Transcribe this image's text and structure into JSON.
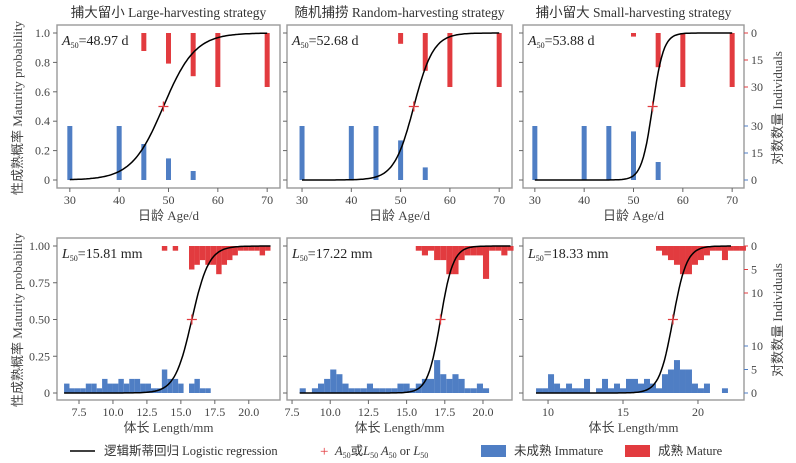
{
  "colors": {
    "immature": "#4f7ec4",
    "mature": "#e23b3f",
    "curve": "#000000",
    "marker": "#e23b3f",
    "frame": "#9a9a9a"
  },
  "y_label_left": "性成熟概率 Maturity probability",
  "y_label_right": "对数数量 Individuals",
  "legend": {
    "curve": "逻辑斯蒂回归 Logistic regression",
    "marker_symbol": "+",
    "marker_parts": [
      "A",
      "50",
      "或",
      "L",
      "50",
      "  A",
      "50",
      " or ",
      "L",
      "50"
    ],
    "immature": "未成熟 Immature",
    "mature": "成熟 Mature",
    "position": "bottom"
  },
  "chart_data": [
    {
      "type": "bar+line",
      "title": "捕大留小 Large-harvesting strategy",
      "xlabel": "日龄 Age/d",
      "xlim": [
        27.4,
        72.6
      ],
      "ylim": [
        0,
        1
      ],
      "xticks": [
        "30",
        "40",
        "50",
        "60",
        "70"
      ],
      "yticks": [
        "0",
        "0.2",
        "0.4",
        "0.6",
        "0.8",
        "1.0"
      ],
      "annotation": {
        "var": "A",
        "sub": "50",
        "text": "=48.97 d"
      },
      "x50": 48.97,
      "slope": 0.31,
      "curve_range": [
        30,
        70
      ],
      "bin_width": 0,
      "immature": {
        "x": [
          30,
          40,
          45,
          50,
          55
        ],
        "counts": [
          30,
          30,
          20,
          12,
          5
        ]
      },
      "mature": {
        "x": [
          45,
          50,
          55,
          60,
          70
        ],
        "counts": [
          10,
          17,
          24,
          30,
          30
        ]
      }
    },
    {
      "type": "bar+line",
      "title": "随机捕捞 Random-harvesting strategy",
      "xlabel": "日龄 Age/d",
      "xlim": [
        26.95,
        72.6
      ],
      "ylim": [
        0,
        1
      ],
      "xticks": [
        "30",
        "40",
        "50",
        "60",
        "70"
      ],
      "annotation": {
        "var": "A",
        "sub": "50",
        "text": "=52.68 d"
      },
      "x50": 52.68,
      "slope": 0.5,
      "curve_range": [
        30,
        70
      ],
      "bin_width": 0,
      "immature": {
        "x": [
          30,
          40,
          45,
          50,
          55
        ],
        "counts": [
          30,
          30,
          30,
          22,
          7
        ]
      },
      "mature": {
        "x": [
          50,
          55,
          60,
          70
        ],
        "counts": [
          6,
          21,
          30,
          30
        ]
      }
    },
    {
      "type": "bar+line",
      "title": "捕小留大 Small-harvesting strategy",
      "xlabel": "日龄 Age/d",
      "xlim": [
        27.6,
        72.4
      ],
      "ylim": [
        0,
        1
      ],
      "xticks": [
        "30",
        "40",
        "50",
        "60",
        "70"
      ],
      "right_ticks_mature": [
        "0",
        "15",
        "30"
      ],
      "right_ticks_immature": [
        "30",
        "15",
        "0"
      ],
      "annotation": {
        "var": "A",
        "sub": "50",
        "text": "=53.88 d"
      },
      "x50": 53.88,
      "slope": 0.9,
      "curve_range": [
        30,
        70
      ],
      "bin_width": 0,
      "immature": {
        "x": [
          30,
          40,
          45,
          50,
          55
        ],
        "counts": [
          30,
          30,
          30,
          27,
          10
        ]
      },
      "mature": {
        "x": [
          50,
          55,
          60,
          70
        ],
        "counts": [
          2,
          19,
          30,
          30
        ]
      }
    },
    {
      "type": "histogram+line",
      "xlabel": "体长 Length/mm",
      "xlim": [
        5.88,
        22.3
      ],
      "ylim": [
        0,
        1
      ],
      "xticks": [
        "7.5",
        "10.0",
        "12.5",
        "15.0",
        "17.5",
        "20.0"
      ],
      "yticks": [
        "0",
        "0.25",
        "0.50",
        "0.75",
        "1.00"
      ],
      "annotation": {
        "var": "L",
        "sub": "50",
        "text": "=15.81 mm"
      },
      "x50": 15.81,
      "slope": 1.6,
      "curve_range": [
        6.4,
        21.6
      ],
      "bin_width": 0.4,
      "immature": {
        "start": 6.4,
        "counts": [
          2,
          1,
          1,
          1,
          2,
          2,
          1,
          3,
          2,
          2,
          3,
          2,
          3,
          3,
          2,
          2,
          1,
          1,
          5,
          3,
          3,
          2,
          0,
          2,
          3,
          1,
          1
        ]
      },
      "mature": {
        "start": 13.6,
        "counts": [
          1,
          0,
          1,
          0,
          0,
          5,
          4,
          3,
          4,
          4,
          6,
          4,
          3,
          2,
          1,
          1,
          1,
          1,
          2,
          1
        ]
      }
    },
    {
      "type": "histogram+line",
      "xlabel": "体长 Length/mm",
      "xlim": [
        7.17,
        21.9
      ],
      "ylim": [
        0,
        1
      ],
      "xticks": [
        "7.5",
        "10.0",
        "12.5",
        "15.0",
        "17.5",
        "20.0"
      ],
      "annotation": {
        "var": "L",
        "sub": "50",
        "text": "=17.22 mm"
      },
      "x50": 17.22,
      "slope": 2.4,
      "curve_range": [
        8.0,
        21.8
      ],
      "bin_width": 0.4,
      "immature": {
        "start": 8.0,
        "counts": [
          1,
          0,
          1,
          2,
          3,
          5,
          4,
          2,
          1,
          1,
          1,
          2,
          1,
          1,
          1,
          1,
          2,
          2,
          1,
          2,
          3,
          3,
          7,
          4,
          3,
          4,
          3,
          1,
          1,
          2,
          1
        ]
      },
      "mature": {
        "start": 15.6,
        "counts": [
          1,
          2,
          1,
          3,
          3,
          6,
          6,
          3,
          2,
          2,
          2,
          7,
          1,
          1,
          2,
          1
        ]
      }
    },
    {
      "type": "histogram+line",
      "xlabel": "体长 Length/mm",
      "xlim": [
        8.33,
        23.07
      ],
      "ylim": [
        0,
        1
      ],
      "xticks": [
        "10",
        "15",
        "20"
      ],
      "right_ticks_mature": [
        "0",
        "5",
        "10"
      ],
      "right_ticks_immature": [
        "10",
        "5",
        "0"
      ],
      "annotation": {
        "var": "L",
        "sub": "50",
        "text": "=18.33 mm"
      },
      "x50": 18.33,
      "slope": 2.2,
      "curve_range": [
        9.2,
        22.2
      ],
      "bin_width": 0.4,
      "immature": {
        "start": 9.2,
        "counts": [
          1,
          1,
          4,
          2,
          1,
          2,
          1,
          1,
          3,
          0,
          1,
          3,
          1,
          2,
          1,
          3,
          3,
          2,
          3,
          2,
          1,
          4,
          5,
          7,
          5,
          5,
          2,
          1,
          2,
          0,
          0,
          1,
          0
        ]
      },
      "mature": {
        "start": 17.2,
        "counts": [
          1,
          2,
          3,
          4,
          6,
          6,
          4,
          3,
          2,
          1,
          1,
          3,
          1,
          1,
          1
        ]
      }
    }
  ]
}
